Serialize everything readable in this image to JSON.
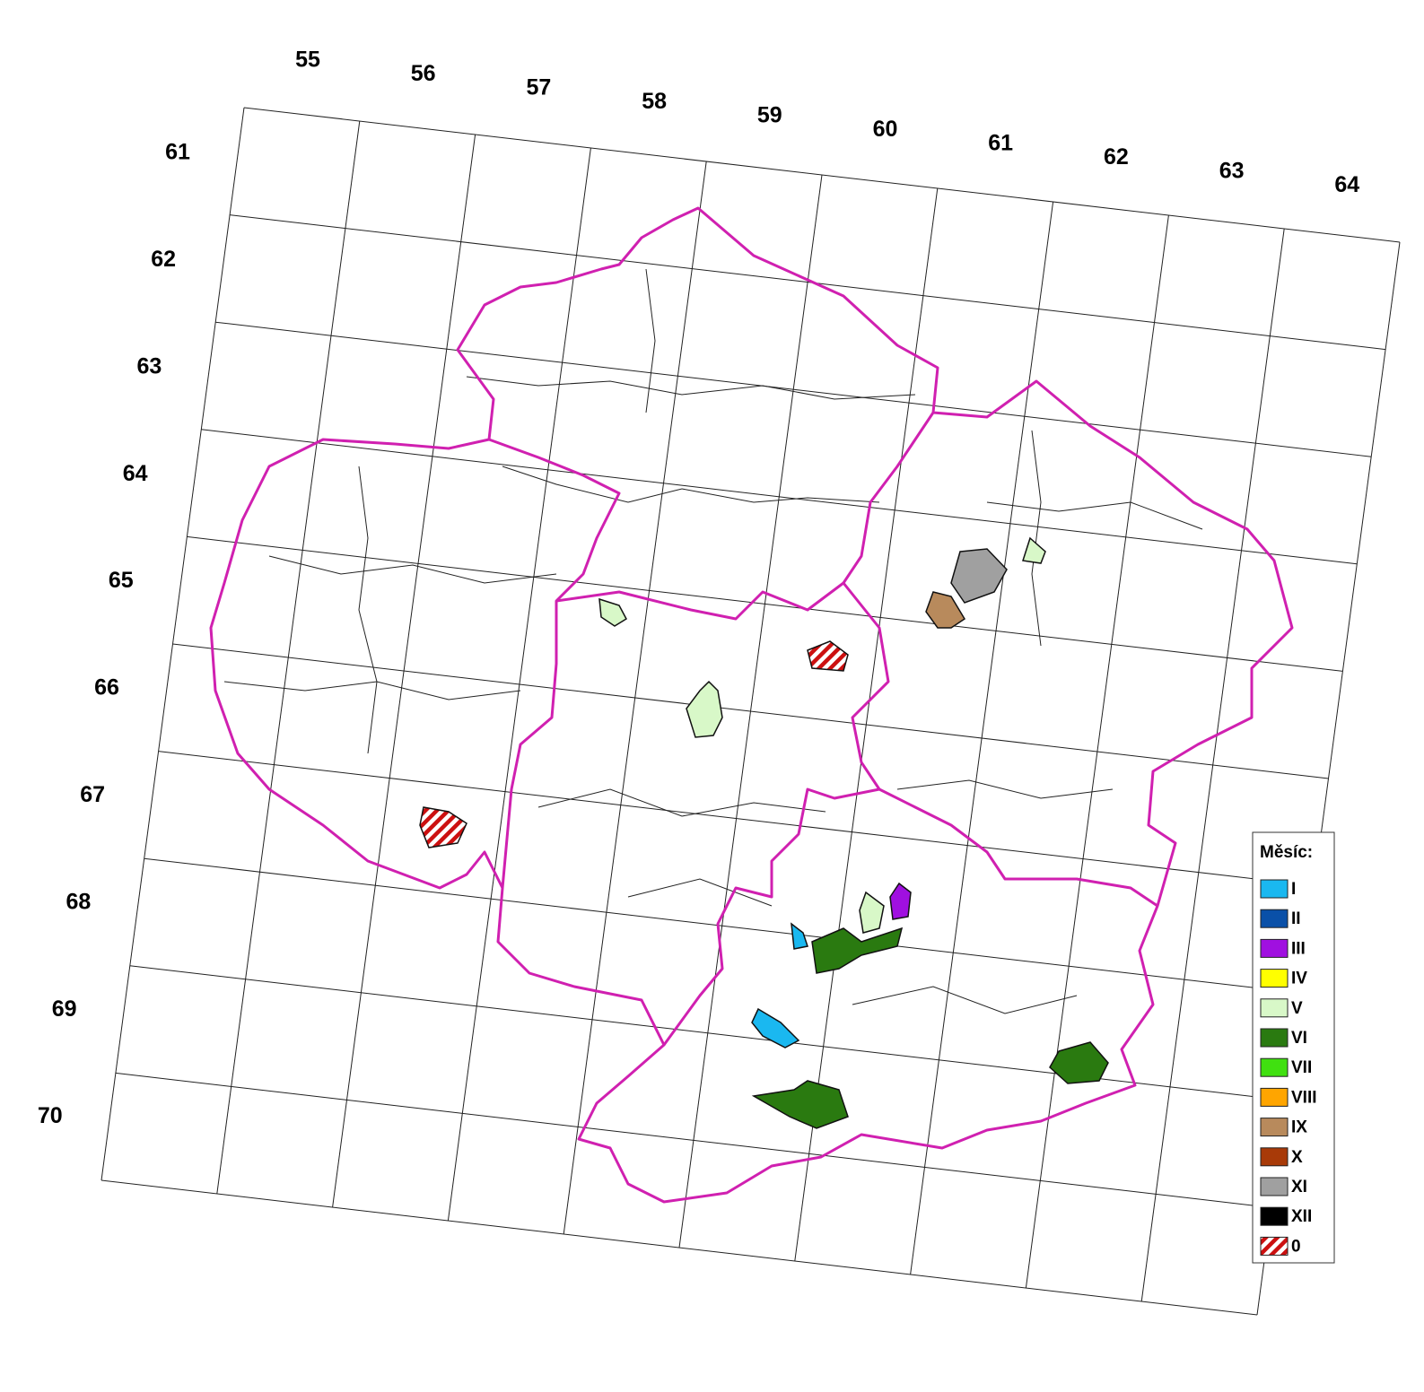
{
  "map": {
    "column_labels": [
      55,
      56,
      57,
      58,
      59,
      60,
      61,
      62,
      63,
      64
    ],
    "row_labels": [
      61,
      62,
      63,
      64,
      65,
      66,
      67,
      68,
      69,
      70
    ],
    "legend": {
      "title": "Měsíc:",
      "items": [
        {
          "label": "I",
          "color": "#1ab8f0"
        },
        {
          "label": "II",
          "color": "#0a50a8"
        },
        {
          "label": "III",
          "color": "#a010e0"
        },
        {
          "label": "IV",
          "color": "#ffff00"
        },
        {
          "label": "V",
          "color": "#d8f8c8"
        },
        {
          "label": "VI",
          "color": "#2a7a10"
        },
        {
          "label": "VII",
          "color": "#40e010"
        },
        {
          "label": "VIII",
          "color": "#ffa500"
        },
        {
          "label": "IX",
          "color": "#b88a5c"
        },
        {
          "label": "X",
          "color": "#a83a08"
        },
        {
          "label": "XI",
          "color": "#a0a0a0"
        },
        {
          "label": "XII",
          "color": "#000000"
        },
        {
          "label": "0",
          "color": "#cc1010",
          "hatched": true
        }
      ]
    }
  }
}
